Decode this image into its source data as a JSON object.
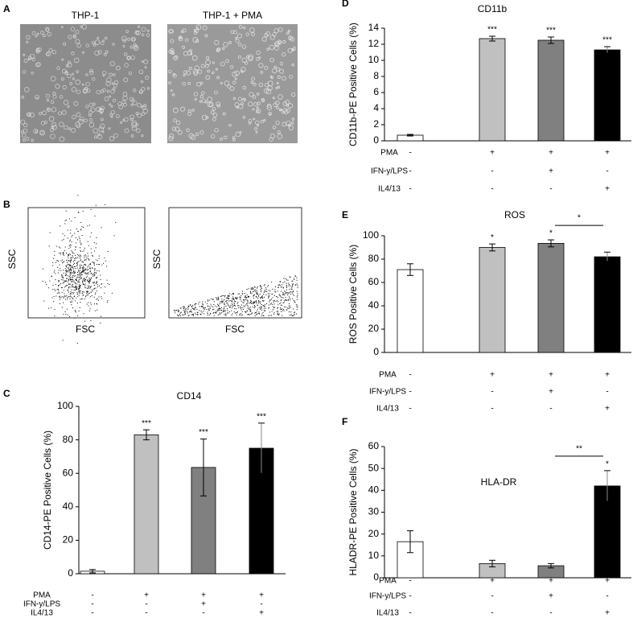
{
  "panels": {
    "A": {
      "letter": "A",
      "images": [
        {
          "label": "THP-1"
        },
        {
          "label": "THP-1 + PMA"
        }
      ]
    },
    "B": {
      "letter": "B",
      "plots": [
        {
          "y_label": "SSC",
          "x_label": "FSC"
        },
        {
          "y_label": "SSC",
          "x_label": "FSC"
        }
      ]
    }
  },
  "chart_data": [
    {
      "type": "bar",
      "panel_letter": "C",
      "title": "CD14",
      "y_label": "CD14-PE Positive Cells (%)",
      "ylim": [
        0,
        100
      ],
      "yticks": [
        0,
        20,
        40,
        60,
        80,
        100
      ],
      "values": [
        1.5,
        83,
        63.5,
        75
      ],
      "errors": [
        1,
        3,
        17,
        15
      ],
      "colors": [
        "#ffffff",
        "#c0c0c0",
        "#808080",
        "#000000"
      ],
      "significance": [
        null,
        "***",
        "***",
        "***"
      ],
      "conditions": [
        {
          "name": "PMA",
          "marks": [
            "-",
            "+",
            "+",
            "+"
          ]
        },
        {
          "name": "IFN-y/LPS",
          "marks": [
            "-",
            "-",
            "+",
            "-"
          ]
        },
        {
          "name": "IL4/13",
          "marks": [
            "-",
            "-",
            "-",
            "+"
          ]
        }
      ]
    },
    {
      "type": "bar",
      "panel_letter": "D",
      "title": "CD11b",
      "y_label": "CD11b-PE Positive Cells (%)",
      "ylim": [
        0,
        14
      ],
      "yticks": [
        0,
        2,
        4,
        6,
        8,
        10,
        12,
        14
      ],
      "values": [
        0.7,
        12.7,
        12.5,
        11.3
      ],
      "errors": [
        0.1,
        0.3,
        0.4,
        0.4
      ],
      "colors": [
        "#ffffff",
        "#c0c0c0",
        "#808080",
        "#000000"
      ],
      "significance": [
        null,
        "***",
        "***",
        "***"
      ],
      "conditions": [
        {
          "name": "PMA",
          "marks": [
            "-",
            "+",
            "+",
            "+"
          ]
        },
        {
          "name": "IFN-y/LPS",
          "marks": [
            "-",
            "-",
            "+",
            "-"
          ]
        },
        {
          "name": "IL4/13",
          "marks": [
            "-",
            "-",
            "-",
            "+"
          ]
        }
      ]
    },
    {
      "type": "bar",
      "panel_letter": "E",
      "title": "ROS",
      "y_label": "ROS Positive Cells (%)",
      "ylim": [
        0,
        100
      ],
      "yticks": [
        0,
        20,
        40,
        60,
        80,
        100
      ],
      "values": [
        71,
        90,
        93.5,
        82
      ],
      "errors": [
        5,
        3,
        3,
        4
      ],
      "colors": [
        "#ffffff",
        "#c0c0c0",
        "#808080",
        "#000000"
      ],
      "significance": [
        null,
        "*",
        "*",
        null
      ],
      "comparisons": [
        {
          "text": "*",
          "between": [
            2,
            3
          ]
        }
      ],
      "conditions": [
        {
          "name": "PMA",
          "marks": [
            "-",
            "+",
            "+",
            "+"
          ]
        },
        {
          "name": "IFN-y/LPS",
          "marks": [
            "-",
            "-",
            "+",
            "-"
          ]
        },
        {
          "name": "IL4/13",
          "marks": [
            "-",
            "-",
            "-",
            "+"
          ]
        }
      ]
    },
    {
      "type": "bar",
      "panel_letter": "F",
      "title": "HLA-DR",
      "y_label": "HLADR-PE Positive Cells (%)",
      "ylim": [
        0,
        60
      ],
      "yticks": [
        0,
        10,
        20,
        30,
        40,
        50,
        60
      ],
      "values": [
        16.5,
        6.5,
        5.5,
        42
      ],
      "errors": [
        5,
        1.5,
        1,
        7
      ],
      "colors": [
        "#ffffff",
        "#c0c0c0",
        "#808080",
        "#000000"
      ],
      "significance": [
        null,
        null,
        null,
        "*"
      ],
      "comparisons": [
        {
          "text": "**",
          "between": [
            2,
            3
          ]
        }
      ],
      "conditions": [
        {
          "name": "PMA",
          "marks": [
            "-",
            "+",
            "+",
            "+"
          ]
        },
        {
          "name": "IFN-y/LPS",
          "marks": [
            "-",
            "-",
            "+",
            "-"
          ]
        },
        {
          "name": "IL4/13",
          "marks": [
            "-",
            "-",
            "-",
            "+"
          ]
        }
      ]
    }
  ]
}
